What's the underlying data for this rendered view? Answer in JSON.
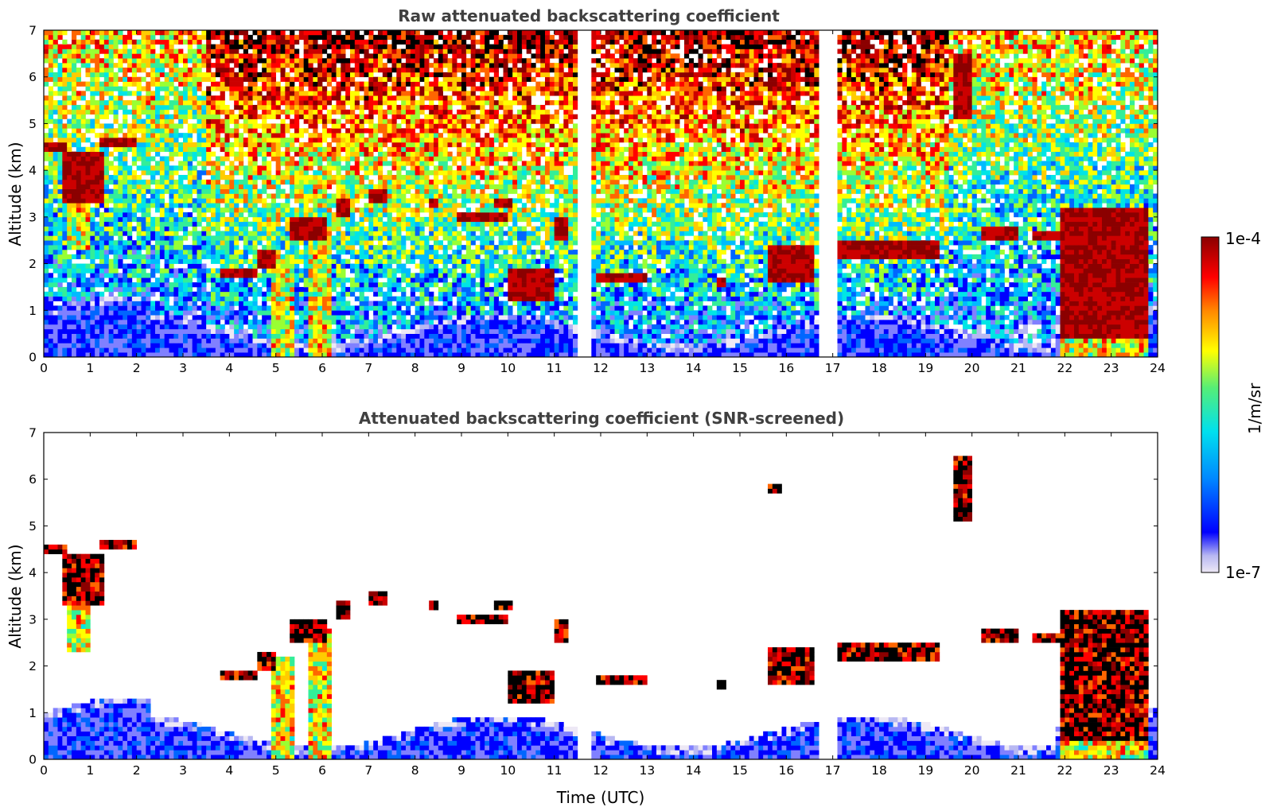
{
  "chart_data": [
    {
      "type": "heatmap",
      "title": "Raw attenuated backscattering coefficient",
      "xlabel": "",
      "ylabel": "Altitude (km)",
      "xlim": [
        0,
        24
      ],
      "ylim": [
        0,
        7
      ],
      "xticks": [
        "0",
        "1",
        "2",
        "3",
        "4",
        "5",
        "6",
        "7",
        "8",
        "9",
        "10",
        "11",
        "12",
        "13",
        "14",
        "15",
        "16",
        "17",
        "18",
        "19",
        "20",
        "21",
        "22",
        "23",
        "24"
      ],
      "yticks": [
        "0",
        "1",
        "2",
        "3",
        "4",
        "5",
        "6",
        "7"
      ],
      "screened": false,
      "cloud_layers": [
        {
          "t0": 0.0,
          "t1": 0.5,
          "z0": 4.4,
          "z1": 4.6
        },
        {
          "t0": 0.45,
          "t1": 1.3,
          "z0": 3.3,
          "z1": 4.4
        },
        {
          "t0": 1.2,
          "t1": 2.0,
          "z0": 4.5,
          "z1": 4.7
        },
        {
          "t0": 3.8,
          "t1": 4.6,
          "z0": 1.7,
          "z1": 1.9
        },
        {
          "t0": 4.6,
          "t1": 5.0,
          "z0": 1.9,
          "z1": 2.3
        },
        {
          "t0": 5.3,
          "t1": 6.1,
          "z0": 2.5,
          "z1": 3.0
        },
        {
          "t0": 6.3,
          "t1": 6.6,
          "z0": 3.0,
          "z1": 3.4
        },
        {
          "t0": 7.0,
          "t1": 7.4,
          "z0": 3.3,
          "z1": 3.6
        },
        {
          "t0": 8.3,
          "t1": 8.5,
          "z0": 3.2,
          "z1": 3.4
        },
        {
          "t0": 8.9,
          "t1": 10.0,
          "z0": 2.9,
          "z1": 3.1
        },
        {
          "t0": 9.7,
          "t1": 10.1,
          "z0": 3.2,
          "z1": 3.4
        },
        {
          "t0": 10.0,
          "t1": 11.0,
          "z0": 1.2,
          "z1": 1.9
        },
        {
          "t0": 11.0,
          "t1": 11.3,
          "z0": 2.5,
          "z1": 3.0
        },
        {
          "t0": 11.9,
          "t1": 13.0,
          "z0": 1.6,
          "z1": 1.8
        },
        {
          "t0": 14.5,
          "t1": 14.7,
          "z0": 1.5,
          "z1": 1.7
        },
        {
          "t0": 15.6,
          "t1": 16.6,
          "z0": 1.6,
          "z1": 2.4
        },
        {
          "t0": 17.0,
          "t1": 19.3,
          "z0": 2.1,
          "z1": 2.5
        },
        {
          "t0": 20.2,
          "t1": 21.0,
          "z0": 2.5,
          "z1": 2.8
        },
        {
          "t0": 21.3,
          "t1": 21.9,
          "z0": 2.5,
          "z1": 2.7
        },
        {
          "t0": 15.6,
          "t1": 15.9,
          "z0": 5.7,
          "z1": 5.9
        },
        {
          "t0": 19.6,
          "t1": 20.0,
          "z0": 5.1,
          "z1": 6.5
        },
        {
          "t0": 21.9,
          "t1": 23.8,
          "z0": 0.4,
          "z1": 3.2
        }
      ],
      "rain_shafts": [
        {
          "t0": 0.55,
          "t1": 1.0,
          "z0": 2.3,
          "z1": 4.0
        },
        {
          "t0": 4.9,
          "t1": 5.4,
          "z0": 0.0,
          "z1": 2.2
        },
        {
          "t0": 5.7,
          "t1": 6.2,
          "z0": 0.0,
          "z1": 2.8
        },
        {
          "t0": 19.7,
          "t1": 19.9,
          "z0": 5.2,
          "z1": 6.3
        },
        {
          "t0": 21.9,
          "t1": 23.8,
          "z0": 0.0,
          "z1": 3.2
        }
      ],
      "data_gaps": [
        {
          "t0": 11.5,
          "t1": 11.8
        },
        {
          "t0": 16.75,
          "t1": 17.05
        }
      ]
    },
    {
      "type": "heatmap",
      "title": "Attenuated backscattering coefficient (SNR-screened)",
      "xlabel": "Time (UTC)",
      "ylabel": "Altitude (km)",
      "xlim": [
        0,
        24
      ],
      "ylim": [
        0,
        7
      ],
      "xticks": [
        "0",
        "1",
        "2",
        "3",
        "4",
        "5",
        "6",
        "7",
        "8",
        "9",
        "10",
        "11",
        "12",
        "13",
        "14",
        "15",
        "16",
        "17",
        "18",
        "19",
        "20",
        "21",
        "22",
        "23",
        "24"
      ],
      "yticks": [
        "0",
        "1",
        "2",
        "3",
        "4",
        "5",
        "6",
        "7"
      ],
      "screened": true
    }
  ],
  "colorbar": {
    "label": "1/m/sr",
    "max_label": "1e-4",
    "min_label": "1e-7",
    "colormap": [
      "#ede8f5",
      "#b8b8f2",
      "#8080ff",
      "#0000ff",
      "#0066ff",
      "#00bbff",
      "#00e5e5",
      "#33ee99",
      "#99ff33",
      "#ffff00",
      "#ffcc00",
      "#ff6600",
      "#ff0000",
      "#cc0000",
      "#8b0000"
    ]
  }
}
